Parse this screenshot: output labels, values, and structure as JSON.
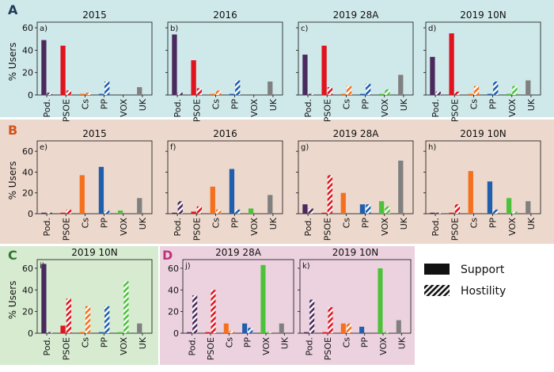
{
  "ylabel": "% Users",
  "categories": [
    "Pod.",
    "PSOE",
    "Cs",
    "PP",
    "VOX",
    "UK"
  ],
  "colors": {
    "Pod.": "#4a2a5e",
    "PSOE": "#e0141e",
    "Cs": "#f5701e",
    "PP": "#1f5fae",
    "VOX": "#4cc23a",
    "UK": "#808080"
  },
  "legend": {
    "support": "Support",
    "hostility": "Hostility"
  },
  "rows": [
    {
      "letter": "A",
      "bg": "#cfe8ea"
    },
    {
      "letter": "B",
      "bg": "#ecd8cc"
    },
    {
      "letter": "C",
      "bg": "#d6ebd0"
    },
    {
      "letter": "D",
      "bg": "#ecd2de"
    }
  ],
  "chart_data": [
    {
      "type": "bar",
      "row": "A",
      "panel": "a)",
      "title": "2015",
      "ylim": [
        0,
        65
      ],
      "yticks": [
        0,
        20,
        40,
        60
      ],
      "series": [
        {
          "name": "Support",
          "values": [
            49,
            44,
            1,
            1,
            0,
            7
          ]
        },
        {
          "name": "Hostility",
          "values": [
            2,
            4,
            2,
            12,
            0,
            0
          ]
        }
      ]
    },
    {
      "type": "bar",
      "row": "A",
      "panel": "b)",
      "title": "2016",
      "ylim": [
        0,
        65
      ],
      "yticks": [
        0,
        20,
        40,
        60
      ],
      "series": [
        {
          "name": "Support",
          "values": [
            54,
            31,
            1,
            1,
            0,
            12
          ]
        },
        {
          "name": "Hostility",
          "values": [
            2,
            6,
            4,
            13,
            0,
            0
          ]
        }
      ]
    },
    {
      "type": "bar",
      "row": "A",
      "panel": "c)",
      "title": "2019 28A",
      "ylim": [
        0,
        65
      ],
      "yticks": [
        0,
        20,
        40,
        60
      ],
      "series": [
        {
          "name": "Support",
          "values": [
            36,
            44,
            1,
            1,
            1,
            18
          ]
        },
        {
          "name": "Hostility",
          "values": [
            1,
            7,
            8,
            10,
            5,
            0
          ]
        }
      ]
    },
    {
      "type": "bar",
      "row": "A",
      "panel": "d)",
      "title": "2019 10N",
      "ylim": [
        0,
        65
      ],
      "yticks": [
        0,
        20,
        40,
        60
      ],
      "series": [
        {
          "name": "Support",
          "values": [
            34,
            55,
            1,
            1,
            1,
            13
          ]
        },
        {
          "name": "Hostility",
          "values": [
            3,
            3,
            8,
            12,
            8,
            0
          ]
        }
      ]
    },
    {
      "type": "bar",
      "row": "B",
      "panel": "e)",
      "title": "2015",
      "ylim": [
        0,
        70
      ],
      "yticks": [
        0,
        20,
        40,
        60
      ],
      "series": [
        {
          "name": "Support",
          "values": [
            1,
            1,
            37,
            45,
            3,
            15
          ]
        },
        {
          "name": "Hostility",
          "values": [
            1,
            4,
            0,
            3,
            0,
            0
          ]
        }
      ]
    },
    {
      "type": "bar",
      "row": "B",
      "panel": "f)",
      "title": "2016",
      "ylim": [
        0,
        70
      ],
      "yticks": [
        0,
        20,
        40,
        60
      ],
      "series": [
        {
          "name": "Support",
          "values": [
            1,
            2,
            26,
            43,
            5,
            18
          ]
        },
        {
          "name": "Hostility",
          "values": [
            12,
            7,
            4,
            4,
            0,
            0
          ]
        }
      ]
    },
    {
      "type": "bar",
      "row": "B",
      "panel": "g)",
      "title": "2019 28A",
      "ylim": [
        0,
        70
      ],
      "yticks": [
        0,
        20,
        40,
        60
      ],
      "series": [
        {
          "name": "Support",
          "values": [
            9,
            1,
            20,
            9,
            12,
            51
          ]
        },
        {
          "name": "Hostility",
          "values": [
            5,
            37,
            0,
            9,
            7,
            0
          ]
        }
      ]
    },
    {
      "type": "bar",
      "row": "B",
      "panel": "h)",
      "title": "2019 10N",
      "ylim": [
        0,
        70
      ],
      "yticks": [
        0,
        20,
        40,
        60
      ],
      "series": [
        {
          "name": "Support",
          "values": [
            1,
            1,
            41,
            31,
            15,
            12
          ]
        },
        {
          "name": "Hostility",
          "values": [
            1,
            9,
            0,
            4,
            2,
            0
          ]
        }
      ]
    },
    {
      "type": "bar",
      "row": "C",
      "panel": "i)",
      "title": "2019 10N",
      "ylim": [
        0,
        68
      ],
      "yticks": [
        0,
        20,
        40,
        60
      ],
      "series": [
        {
          "name": "Support",
          "values": [
            64,
            7,
            1,
            1,
            1,
            9
          ]
        },
        {
          "name": "Hostility",
          "values": [
            1,
            32,
            25,
            25,
            48,
            0
          ]
        }
      ]
    },
    {
      "type": "bar",
      "row": "D",
      "panel": "j)",
      "title": "2019 28A",
      "ylim": [
        0,
        68
      ],
      "yticks": [
        0,
        20,
        40,
        60
      ],
      "series": [
        {
          "name": "Support",
          "values": [
            1,
            1,
            9,
            9,
            63,
            9
          ]
        },
        {
          "name": "Hostility",
          "values": [
            35,
            40,
            2,
            5,
            1,
            0
          ]
        }
      ]
    },
    {
      "type": "bar",
      "row": "D",
      "panel": "k)",
      "title": "2019 10N",
      "ylim": [
        0,
        68
      ],
      "yticks": [
        0,
        20,
        40,
        60
      ],
      "series": [
        {
          "name": "Support",
          "values": [
            1,
            1,
            9,
            6,
            60,
            12
          ]
        },
        {
          "name": "Hostility",
          "values": [
            31,
            24,
            9,
            0,
            1,
            0
          ]
        }
      ]
    }
  ]
}
